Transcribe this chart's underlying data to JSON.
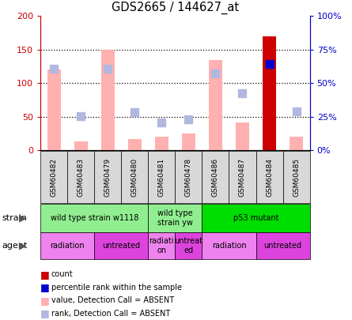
{
  "title": "GDS2665 / 144627_at",
  "samples": [
    "GSM60482",
    "GSM60483",
    "GSM60479",
    "GSM60480",
    "GSM60481",
    "GSM60478",
    "GSM60486",
    "GSM60487",
    "GSM60484",
    "GSM60485"
  ],
  "bar_values": [
    120,
    13,
    150,
    17,
    20,
    25,
    135,
    42,
    170,
    20
  ],
  "bar_colors": [
    "#ffb0b0",
    "#ffb0b0",
    "#ffb0b0",
    "#ffb0b0",
    "#ffb0b0",
    "#ffb0b0",
    "#ffb0b0",
    "#ffb0b0",
    "#cc0000",
    "#ffb0b0"
  ],
  "rank_values_pct": [
    61,
    25.5,
    61,
    28.5,
    21,
    23,
    57.5,
    42.5,
    64,
    29
  ],
  "rank_colors": [
    "#b0b8e0",
    "#b0b8e0",
    "#b0b8e0",
    "#b0b8e0",
    "#b0b8e0",
    "#b0b8e0",
    "#b0b8e0",
    "#b0b8e0",
    "#0000cc",
    "#b0b8e0"
  ],
  "ylim_left": [
    0,
    200
  ],
  "ylim_right": [
    0,
    100
  ],
  "yticks_left": [
    0,
    50,
    100,
    150,
    200
  ],
  "yticks_right": [
    0,
    25,
    50,
    75,
    100
  ],
  "ytick_labels_left": [
    "0",
    "50",
    "100",
    "150",
    "200"
  ],
  "ytick_labels_right": [
    "0%",
    "25%",
    "50%",
    "75%",
    "100%"
  ],
  "strain_groups": [
    {
      "label": "wild type strain w1118",
      "start": 0,
      "end": 4,
      "color": "#90ee90"
    },
    {
      "label": "wild type\nstrain yw",
      "start": 4,
      "end": 6,
      "color": "#90ee90"
    },
    {
      "label": "p53 mutant",
      "start": 6,
      "end": 10,
      "color": "#00dd00"
    }
  ],
  "agent_groups": [
    {
      "label": "radiation",
      "start": 0,
      "end": 2,
      "color": "#ee82ee"
    },
    {
      "label": "untreated",
      "start": 2,
      "end": 4,
      "color": "#dd44dd"
    },
    {
      "label": "radiati\non",
      "start": 4,
      "end": 5,
      "color": "#ee82ee"
    },
    {
      "label": "untreat\ned",
      "start": 5,
      "end": 6,
      "color": "#dd44dd"
    },
    {
      "label": "radiation",
      "start": 6,
      "end": 8,
      "color": "#ee82ee"
    },
    {
      "label": "untreated",
      "start": 8,
      "end": 10,
      "color": "#dd44dd"
    }
  ],
  "legend_items": [
    {
      "label": "count",
      "color": "#cc0000"
    },
    {
      "label": "percentile rank within the sample",
      "color": "#0000cc"
    },
    {
      "label": "value, Detection Call = ABSENT",
      "color": "#ffb0b0"
    },
    {
      "label": "rank, Detection Call = ABSENT",
      "color": "#b0b8e0"
    }
  ],
  "bar_width": 0.5,
  "rank_marker_size": 55,
  "left_axis_color": "#cc0000",
  "right_axis_color": "#0000cc",
  "grid_ticks": [
    50,
    100,
    150
  ]
}
